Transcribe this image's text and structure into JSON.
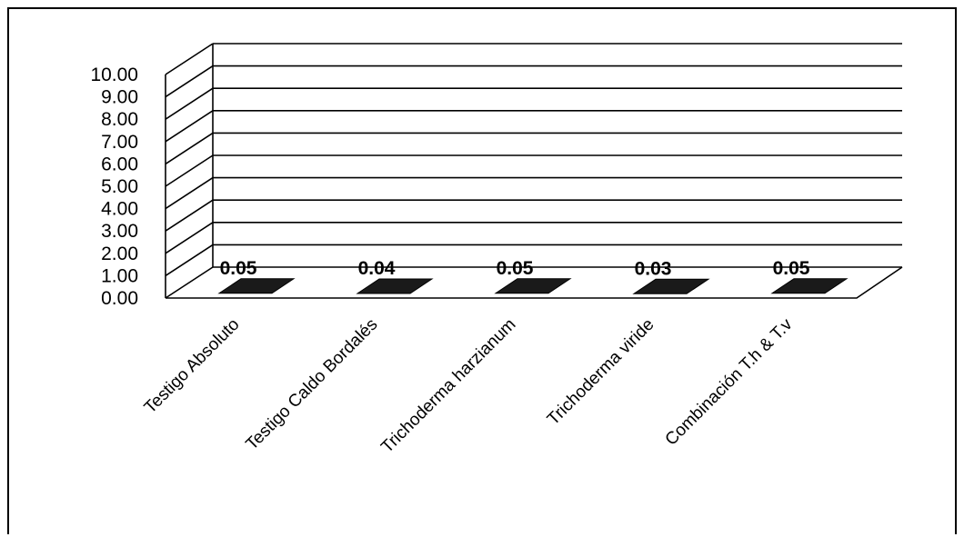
{
  "chart_data": {
    "type": "bar",
    "style": "3d",
    "title": "",
    "xlabel": "",
    "ylabel": "",
    "categories": [
      "Testigo Absoluto",
      "Testigo Caldo Bordalés",
      "Trichoderma harzianum",
      "Trichoderma viride",
      "Combinación T.h & T.v"
    ],
    "values": [
      0.05,
      0.04,
      0.05,
      0.03,
      0.05
    ],
    "value_labels": [
      "0.05",
      "0.04",
      "0.05",
      "0.03",
      "0.05"
    ],
    "yticks": [
      "0.00",
      "1.00",
      "2.00",
      "3.00",
      "4.00",
      "5.00",
      "6.00",
      "7.00",
      "8.00",
      "9.00",
      "10.00"
    ],
    "ylim": [
      0,
      10
    ],
    "grid": true,
    "legend": "none",
    "colors": {
      "bar": "#1a1a1a",
      "grid": "#000000",
      "text": "#000000"
    }
  }
}
